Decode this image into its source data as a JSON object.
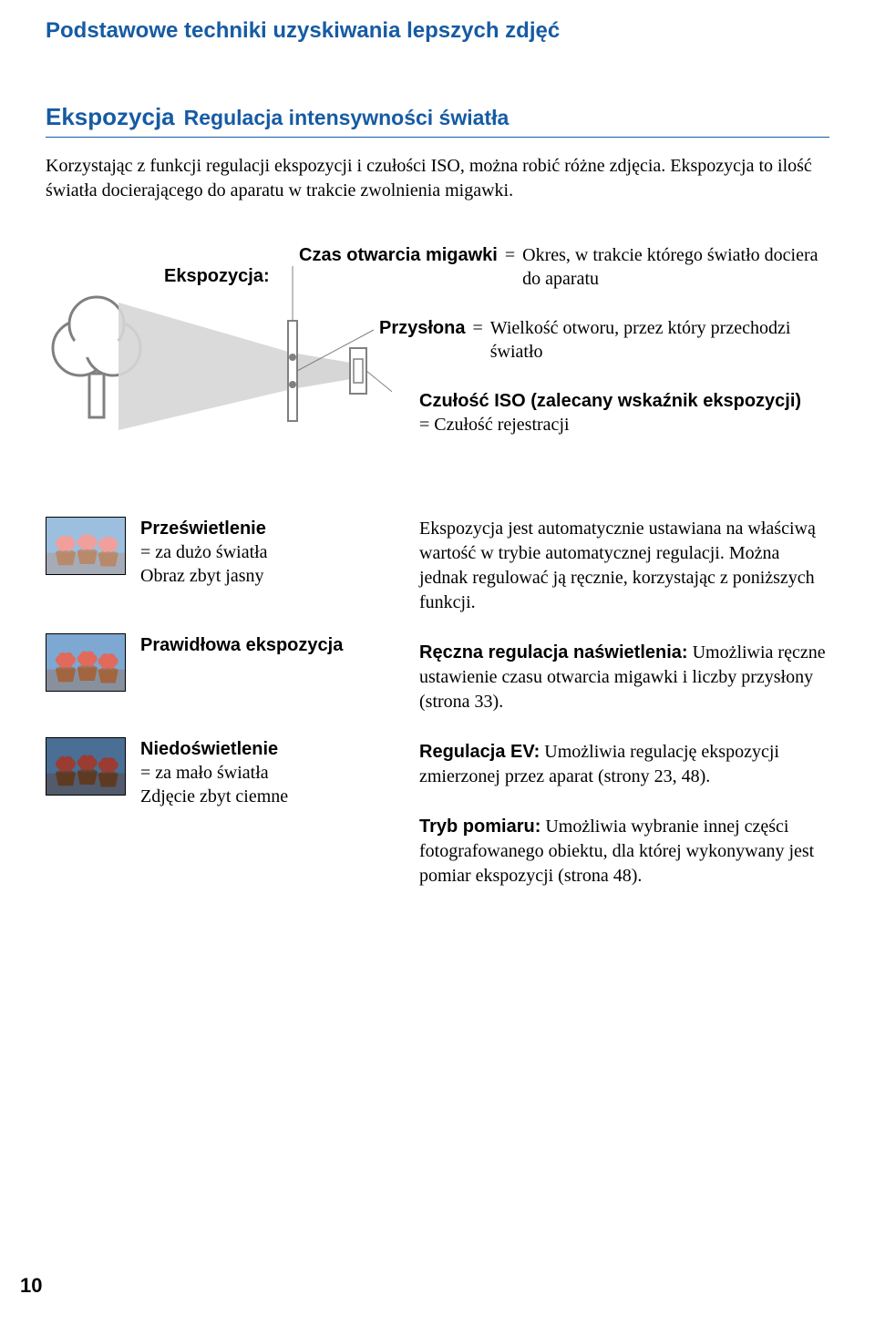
{
  "page_title": "Podstawowe techniki uzyskiwania lepszych zdjęć",
  "section": {
    "tag": "Ekspozycja",
    "subtitle": "Regulacja intensywności światła"
  },
  "intro": "Korzystając z funkcji regulacji ekspozycji i czułości ISO, można robić różne zdjęcia. Ekspozycja to ilość światła docierającego do aparatu w trakcie zwolnienia migawki.",
  "diagram": {
    "exposure_label": "Ekspozycja:",
    "shutter": {
      "label": "Czas otwarcia migawki",
      "eq": "=",
      "text": "Okres, w trakcie którego światło dociera do aparatu"
    },
    "aperture": {
      "label": "Przysłona",
      "eq": "=",
      "text": "Wielkość otworu, przez który przechodzi światło"
    },
    "iso": {
      "title": "Czułość ISO (zalecany wskaźnik ekspozycji)",
      "text": "= Czułość rejestracji"
    },
    "colors": {
      "tree_outline": "#808080",
      "tree_fill": "#ffffff",
      "cone_fill": "#d6d6d6",
      "dot_fill": "#808080",
      "box_stroke": "#808080",
      "box_fill": "#ffffff",
      "line": "#808080"
    }
  },
  "examples": [
    {
      "title": "Prześwietlenie",
      "sub1": "= za dużo światła",
      "sub2": "Obraz zbyt jasny",
      "thumb": {
        "bg": "#9cbfe0",
        "flower": "#f19f9a",
        "rim": "#b8896b"
      }
    },
    {
      "title": "Prawidłowa ekspozycja",
      "sub1": "",
      "sub2": "",
      "thumb": {
        "bg": "#7ca8d2",
        "flower": "#e06a5c",
        "rim": "#a16540"
      }
    },
    {
      "title": "Niedoświetlenie",
      "sub1": "= za mało światła",
      "sub2": "Zdjęcie zbyt ciemne",
      "thumb": {
        "bg": "#4a6e94",
        "flower": "#9a3c32",
        "rim": "#5f3a22"
      }
    }
  ],
  "right": {
    "p1": "Ekspozycja jest automatycznie ustawiana na właściwą wartość w trybie automatycznej regulacji. Można jednak regulować ją ręcznie, korzystając z poniższych funkcji.",
    "manual": {
      "heading": "Ręczna regulacja naświetlenia:",
      "text": "Umożliwia ręczne ustawienie czasu otwarcia migawki i liczby przysłony (strona 33)."
    },
    "ev": {
      "heading": "Regulacja EV:",
      "text": "Umożliwia regulację ekspozycji zmierzonej przez aparat (strony 23, 48)."
    },
    "meter": {
      "heading": "Tryb pomiaru:",
      "text": "Umożliwia wybranie innej części fotografowanego obiektu, dla której wykonywany jest pomiar ekspozycji (strona 48)."
    }
  },
  "page_number": "10",
  "thumb_size": {
    "w": 88,
    "h": 64
  }
}
